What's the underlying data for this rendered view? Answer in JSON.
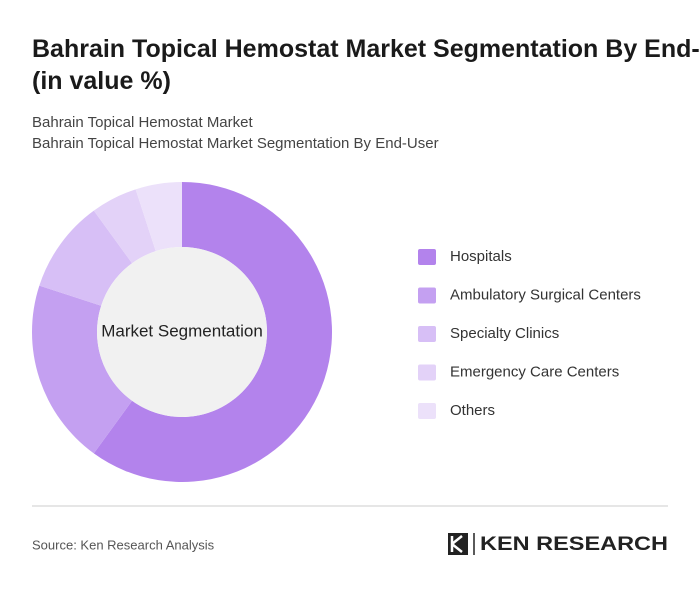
{
  "chart_data": {
    "type": "pie",
    "title": "Bahrain Topical Hemostat Market Segmentation By End-User (in value %)",
    "subtitle": [
      "Bahrain Topical Hemostat Market",
      "Bahrain Topical Hemostat Market Segmentation By End-User"
    ],
    "center_label": "Market Segmentation",
    "categories": [
      "Hospitals",
      "Ambulatory Surgical Centers",
      "Specialty Clinics",
      "Emergency Care Centers",
      "Others"
    ],
    "values": [
      60,
      20,
      10,
      5,
      5
    ],
    "colors": [
      "#b383ec",
      "#c4a0f1",
      "#d7bff6",
      "#e3d2f8",
      "#ece1fa"
    ],
    "legend": "right",
    "source": "Source: Ken Research Analysis",
    "brand": "KEN RESEARCH"
  }
}
